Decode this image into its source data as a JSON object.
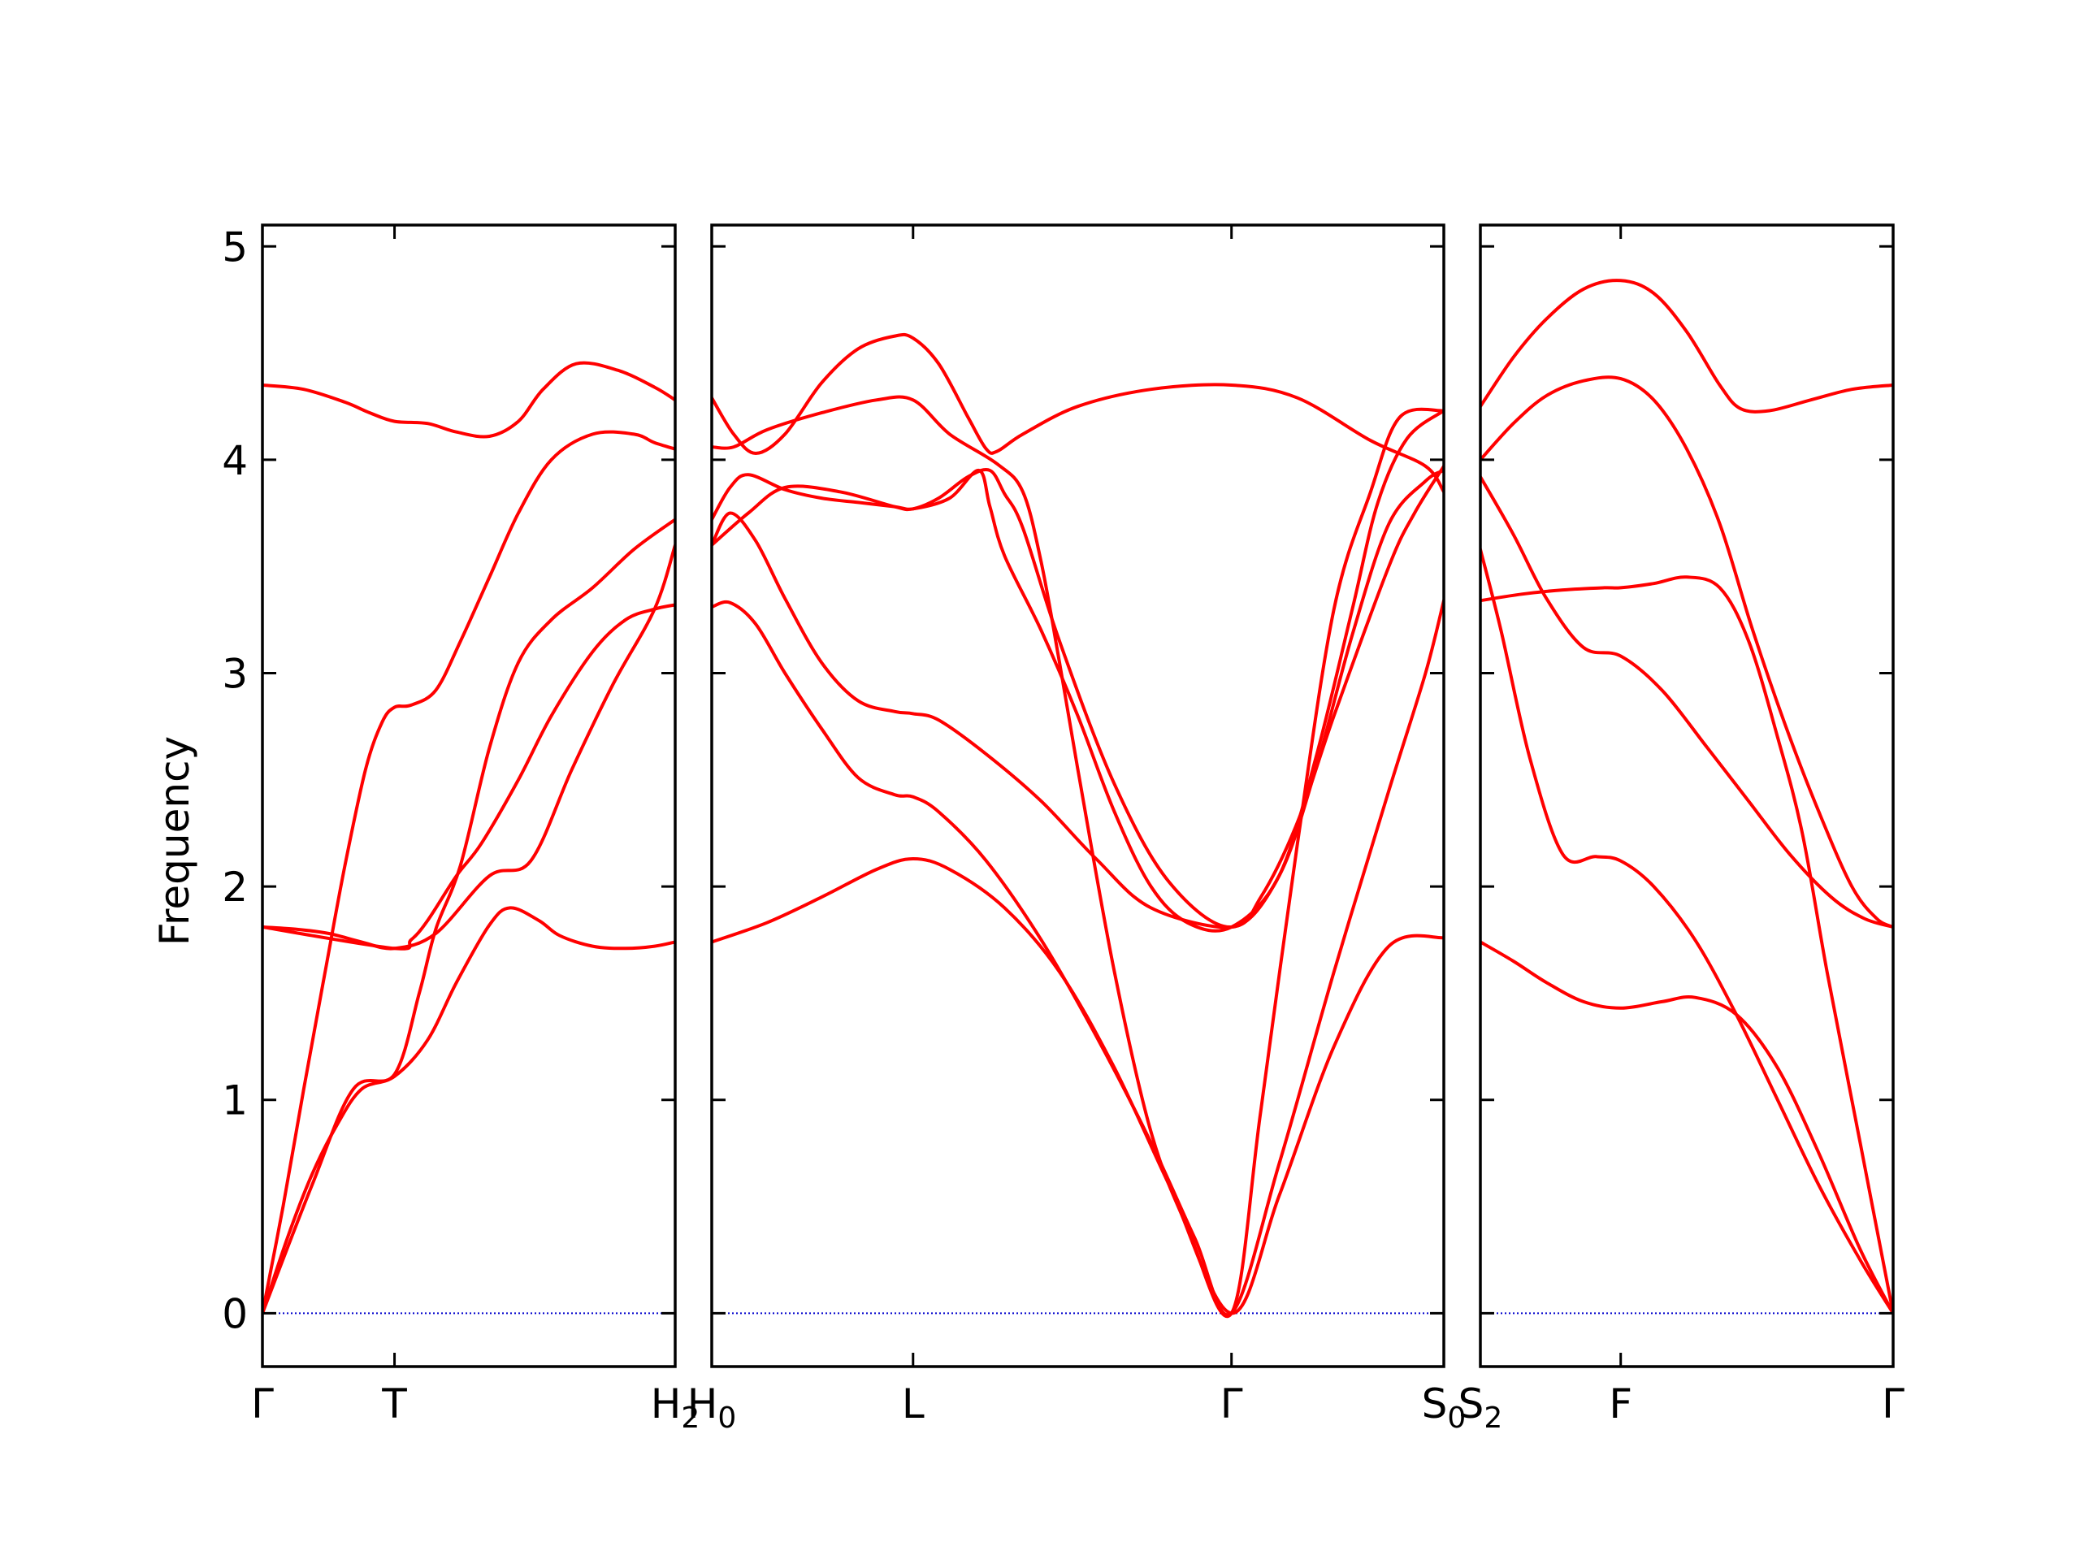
{
  "chart_data": {
    "type": "line",
    "ylabel": "Frequency",
    "ylim": [
      -0.25,
      5.1
    ],
    "yticks": [
      0,
      1,
      2,
      3,
      4,
      5
    ],
    "grid": false,
    "colors": {
      "band": "#ff0000",
      "zero_line": "#0000cc",
      "axes": "#000000"
    },
    "panels": [
      {
        "x_range": [
          0,
          1
        ],
        "xtick_positions": [
          0,
          0.32,
          1
        ],
        "xtick_labels": [
          {
            "main": "Γ",
            "sub": ""
          },
          {
            "main": "T",
            "sub": ""
          },
          {
            "main": "H",
            "sub": "2"
          }
        ],
        "bands": [
          {
            "x": [
              0,
              0.08,
              0.16,
              0.24,
              0.32,
              0.42,
              0.55,
              0.65,
              0.75,
              0.85,
              0.95,
              1
            ],
            "y": [
              1.81,
              1.8,
              1.78,
              1.74,
              1.71,
              1.78,
              2.05,
              2.12,
              2.55,
              2.95,
              3.3,
              3.6
            ]
          },
          {
            "x": [
              0,
              0.06,
              0.12,
              0.18,
              0.24,
              0.32,
              0.4,
              0.47,
              0.55,
              0.6,
              0.67,
              0.72,
              0.8,
              0.88,
              0.95,
              1
            ],
            "y": [
              0,
              0.35,
              0.65,
              0.88,
              1.05,
              1.11,
              1.28,
              1.55,
              1.82,
              1.9,
              1.84,
              1.77,
              1.72,
              1.71,
              1.72,
              1.74
            ]
          },
          {
            "x": [
              0,
              0.05,
              0.1,
              0.15,
              0.2,
              0.25,
              0.29,
              0.32,
              0.36,
              0.42,
              0.48,
              0.55,
              0.62,
              0.7,
              0.8,
              0.9,
              0.95,
              1
            ],
            "y": [
              0,
              0.5,
              1.05,
              1.58,
              2.1,
              2.55,
              2.77,
              2.84,
              2.85,
              2.92,
              3.15,
              3.45,
              3.75,
              4.0,
              4.12,
              4.12,
              4.08,
              4.05
            ]
          },
          {
            "x": [
              0,
              0.1,
              0.2,
              0.26,
              0.32,
              0.4,
              0.47,
              0.55,
              0.62,
              0.68,
              0.76,
              0.86,
              0.95,
              1
            ],
            "y": [
              4.35,
              4.33,
              4.27,
              4.22,
              4.18,
              4.17,
              4.13,
              4.11,
              4.18,
              4.33,
              4.45,
              4.42,
              4.34,
              4.28
            ]
          },
          {
            "x": [
              0,
              0.12,
              0.22,
              0.32,
              0.38,
              0.42,
              0.48,
              0.55,
              0.62,
              0.7,
              0.8,
              0.9,
              1
            ],
            "y": [
              0,
              0.6,
              1.05,
              1.12,
              1.5,
              1.8,
              2.1,
              2.65,
              3.05,
              3.25,
              3.4,
              3.58,
              3.72
            ]
          },
          {
            "x": [
              0,
              0.32,
              0.36,
              0.4,
              0.47,
              0.53,
              0.62,
              0.7,
              0.8,
              0.88,
              0.95,
              1
            ],
            "y": [
              1.81,
              1.71,
              1.75,
              1.84,
              2.05,
              2.2,
              2.5,
              2.8,
              3.1,
              3.25,
              3.3,
              3.32
            ]
          }
        ]
      },
      {
        "x_range": [
          0,
          2
        ],
        "xtick_positions": [
          0,
          0.55,
          1.42,
          2
        ],
        "xtick_labels": [
          {
            "main": "H",
            "sub": "0"
          },
          {
            "main": "L",
            "sub": ""
          },
          {
            "main": "Γ",
            "sub": ""
          },
          {
            "main": "S",
            "sub": "0"
          }
        ],
        "bands": [
          {
            "x": [
              0,
              0.15,
              0.3,
              0.45,
              0.55,
              0.65,
              0.8,
              0.95,
              1.1,
              1.25,
              1.42,
              1.55,
              1.7,
              1.85,
              2
            ],
            "y": [
              1.74,
              1.83,
              1.95,
              2.08,
              2.13,
              2.08,
              1.9,
              1.6,
              1.15,
              0.6,
              0,
              0.55,
              1.25,
              1.72,
              1.76
            ]
          },
          {
            "x": [
              0,
              0.05,
              0.12,
              0.2,
              0.3,
              0.4,
              0.5,
              0.55,
              0.62,
              0.75,
              0.9,
              1.05,
              1.2,
              1.32,
              1.42,
              1.55,
              1.7,
              1.85,
              1.95,
              2
            ],
            "y": [
              3.31,
              3.33,
              3.23,
              3.0,
              2.74,
              2.51,
              2.43,
              2.42,
              2.35,
              2.12,
              1.75,
              1.3,
              0.8,
              0.35,
              0,
              0.7,
              1.6,
              2.45,
              3.0,
              3.34
            ]
          },
          {
            "x": [
              0,
              0.05,
              0.12,
              0.2,
              0.3,
              0.4,
              0.5,
              0.55,
              0.62,
              0.75,
              0.9,
              1.05,
              1.2,
              1.42,
              1.5,
              1.6,
              1.7,
              1.85,
              1.92,
              2
            ],
            "y": [
              3.6,
              3.75,
              3.62,
              3.35,
              3.05,
              2.87,
              2.82,
              2.81,
              2.78,
              2.62,
              2.4,
              2.13,
              1.9,
              1.81,
              1.95,
              2.3,
              2.8,
              3.5,
              3.75,
              3.97
            ]
          },
          {
            "x": [
              0,
              0.06,
              0.15,
              0.3,
              0.45,
              0.55,
              0.65,
              0.78,
              0.85,
              0.9,
              0.95,
              1.0,
              1.1,
              1.2,
              1.3,
              1.42,
              1.5,
              1.6,
              1.7,
              1.8,
              1.88,
              2
            ],
            "y": [
              4.06,
              4.06,
              4.14,
              4.22,
              4.28,
              4.28,
              4.12,
              3.98,
              3.85,
              3.52,
              3.05,
              2.55,
              1.6,
              0.85,
              0.4,
              0,
              0.95,
              2.2,
              3.3,
              3.85,
              4.2,
              4.23
            ]
          },
          {
            "x": [
              0,
              0.05,
              0.1,
              0.2,
              0.3,
              0.4,
              0.5,
              0.55,
              0.62,
              0.7,
              0.76,
              0.8,
              0.85,
              0.95,
              1.1,
              1.25,
              1.42,
              1.55,
              1.65,
              1.75,
              1.85,
              1.95,
              2
            ],
            "y": [
              3.72,
              3.87,
              3.93,
              3.86,
              3.82,
              3.8,
              3.78,
              3.77,
              3.82,
              3.92,
              3.95,
              3.84,
              3.68,
              3.15,
              2.48,
              2.02,
              1.81,
              2.05,
              2.55,
              3.18,
              3.7,
              3.9,
              3.95
            ]
          },
          {
            "x": [
              0,
              0.06,
              0.12,
              0.2,
              0.3,
              0.4,
              0.5,
              0.55,
              0.62,
              0.7,
              0.75,
              0.78,
              0.85,
              1.0,
              1.2,
              1.42,
              1.6,
              1.8,
              1.95,
              2
            ],
            "y": [
              4.29,
              4.12,
              4.03,
              4.12,
              4.36,
              4.52,
              4.58,
              4.57,
              4.45,
              4.2,
              4.05,
              4.04,
              4.12,
              4.25,
              4.33,
              4.35,
              4.29,
              4.09,
              3.97,
              3.85
            ]
          },
          {
            "x": [
              0,
              0.1,
              0.2,
              0.35,
              0.5,
              0.55,
              0.65,
              0.73,
              0.76,
              0.8,
              0.9,
              1.0,
              1.1,
              1.2,
              1.3,
              1.42,
              1.55,
              1.65,
              1.75,
              1.82,
              1.9,
              2
            ],
            "y": [
              3.6,
              3.75,
              3.87,
              3.85,
              3.78,
              3.77,
              3.82,
              3.95,
              3.78,
              3.55,
              3.2,
              2.8,
              2.35,
              2.0,
              1.83,
              1.81,
              2.05,
              2.6,
              3.3,
              3.8,
              4.1,
              4.23
            ]
          }
        ]
      },
      {
        "x_range": [
          0,
          1
        ],
        "xtick_positions": [
          0,
          0.34,
          1
        ],
        "xtick_labels": [
          {
            "main": "S",
            "sub": "2"
          },
          {
            "main": "F",
            "sub": ""
          },
          {
            "main": "Γ",
            "sub": ""
          }
        ],
        "bands": [
          {
            "x": [
              0,
              0.08,
              0.16,
              0.25,
              0.34,
              0.44,
              0.52,
              0.62,
              0.72,
              0.82,
              0.92,
              1
            ],
            "y": [
              1.74,
              1.65,
              1.55,
              1.46,
              1.43,
              1.46,
              1.48,
              1.4,
              1.15,
              0.75,
              0.3,
              0
            ]
          },
          {
            "x": [
              0,
              0.05,
              0.12,
              0.2,
              0.28,
              0.34,
              0.42,
              0.52,
              0.62,
              0.72,
              0.82,
              0.92,
              1
            ],
            "y": [
              3.58,
              3.2,
              2.6,
              2.15,
              2.14,
              2.12,
              2.0,
              1.75,
              1.4,
              1.0,
              0.6,
              0.25,
              0
            ]
          },
          {
            "x": [
              0,
              0.1,
              0.2,
              0.3,
              0.34,
              0.42,
              0.5,
              0.58,
              0.65,
              0.72,
              0.78,
              0.84,
              0.92,
              1
            ],
            "y": [
              3.34,
              3.37,
              3.39,
              3.4,
              3.4,
              3.42,
              3.45,
              3.4,
              3.15,
              2.7,
              2.25,
              1.6,
              0.8,
              0
            ]
          },
          {
            "x": [
              0,
              0.08,
              0.16,
              0.25,
              0.34,
              0.44,
              0.55,
              0.65,
              0.75,
              0.85,
              0.93,
              1
            ],
            "y": [
              3.92,
              3.65,
              3.35,
              3.12,
              3.08,
              2.92,
              2.65,
              2.4,
              2.15,
              1.95,
              1.85,
              1.81
            ]
          },
          {
            "x": [
              0,
              0.08,
              0.16,
              0.25,
              0.34,
              0.42,
              0.5,
              0.58,
              0.66,
              0.74,
              0.82,
              0.9,
              0.96,
              1
            ],
            "y": [
              4.0,
              4.17,
              4.3,
              4.37,
              4.38,
              4.28,
              4.05,
              3.7,
              3.2,
              2.75,
              2.35,
              2.0,
              1.85,
              1.81
            ]
          },
          {
            "x": [
              0,
              0.08,
              0.16,
              0.25,
              0.34,
              0.42,
              0.5,
              0.58,
              0.63,
              0.7,
              0.8,
              0.9,
              1
            ],
            "y": [
              4.25,
              4.48,
              4.66,
              4.8,
              4.84,
              4.78,
              4.6,
              4.35,
              4.24,
              4.23,
              4.28,
              4.33,
              4.35
            ]
          }
        ]
      }
    ]
  }
}
